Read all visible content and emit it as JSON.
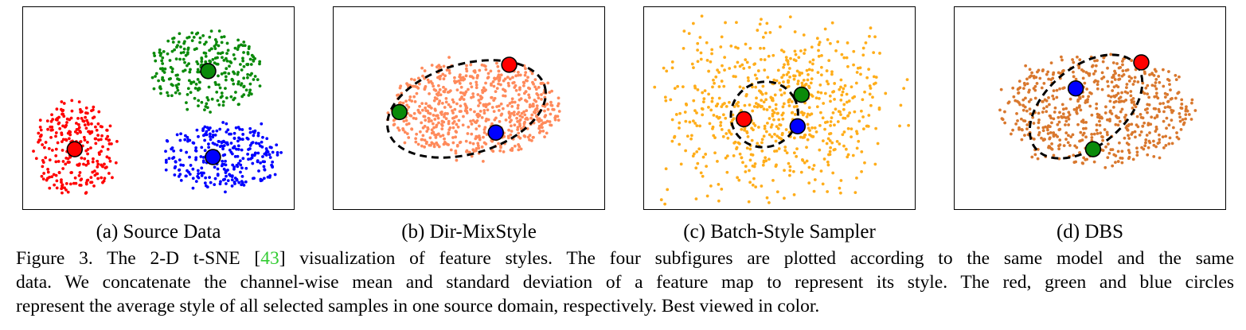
{
  "figure": {
    "panels": [
      {
        "id": "a",
        "label": "(a) Source Data",
        "point_color": "#ff0000",
        "kind": "source"
      },
      {
        "id": "b",
        "label": "(b) Dir-MixStyle",
        "point_color": "#ff8a5b",
        "kind": "ellipse"
      },
      {
        "id": "c",
        "label": "(c) Batch-Style Sampler",
        "point_color": "#ffad1a",
        "kind": "ellipse"
      },
      {
        "id": "d",
        "label": "(d) DBS",
        "point_color": "#d9782e",
        "kind": "ellipse"
      }
    ],
    "colors": {
      "red": "#ff0000",
      "green": "#0a8a0a",
      "blue": "#0000ff"
    }
  },
  "caption": {
    "line1_prefix": "Figure 3. The 2-D t-SNE [",
    "ref": "43",
    "line1_suffix": "] visualization of feature styles. The four subfigures are plotted according to the same model and the same",
    "line2": "data. We concatenate the channel-wise mean and standard deviation of a feature map to represent its style. The red, green and blue circles",
    "line3": "represent the average style of all selected samples in one source domain, respectively. Best viewed in color."
  }
}
